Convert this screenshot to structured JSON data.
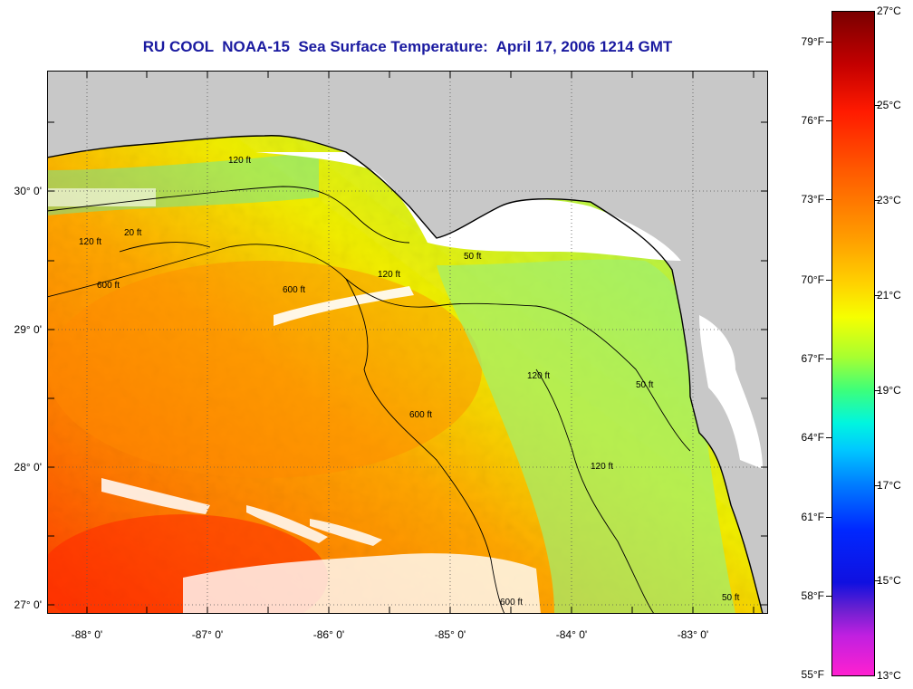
{
  "title": "RU COOL  NOAA-15  Sea Surface Temperature:  April 17, 2006 1214 GMT",
  "map": {
    "lat_labels": [
      "30° 0'",
      "29° 0'",
      "28° 0'",
      "27° 0'"
    ],
    "lon_labels": [
      "-88° 0'",
      "-87° 0'",
      "-86° 0'",
      "-85° 0'",
      "-84° 0'",
      "-83° 0'"
    ],
    "contour_labels": [
      "120 ft",
      "120 ft",
      "20 ft",
      "600 ft",
      "600 ft",
      "120 ft",
      "50 ft",
      "600 ft",
      "120 ft",
      "50 ft",
      "120 ft",
      "600 ft",
      "50 ft"
    ],
    "colors": {
      "land": "#c8c8c8",
      "cloud": "#ffffff",
      "contour": "#000000",
      "grid": "#555555"
    }
  },
  "colorbar": {
    "fahrenheit_labels": [
      "79°F",
      "76°F",
      "73°F",
      "70°F",
      "67°F",
      "64°F",
      "61°F",
      "58°F",
      "55°F"
    ],
    "celsius_labels": [
      "27°C",
      "25°C",
      "23°C",
      "21°C",
      "19°C",
      "17°C",
      "15°C",
      "13°C"
    ]
  }
}
